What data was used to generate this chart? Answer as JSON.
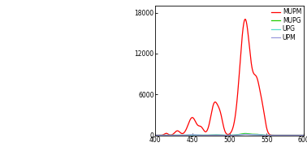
{
  "xlim": [
    400,
    600
  ],
  "ylim": [
    0,
    19000
  ],
  "yticks": [
    0,
    6000,
    12000,
    18000
  ],
  "xticks": [
    400,
    450,
    500,
    550,
    600
  ],
  "legend_entries": [
    "MUPM",
    "MUPG",
    "UPG",
    "UPM"
  ],
  "legend_colors": [
    "#ff0000",
    "#22cc00",
    "#55ddcc",
    "#9999dd"
  ],
  "bg_color": "#ffffff",
  "line_width": 0.9,
  "fig_width": 3.78,
  "fig_height": 1.81,
  "dpi": 100
}
